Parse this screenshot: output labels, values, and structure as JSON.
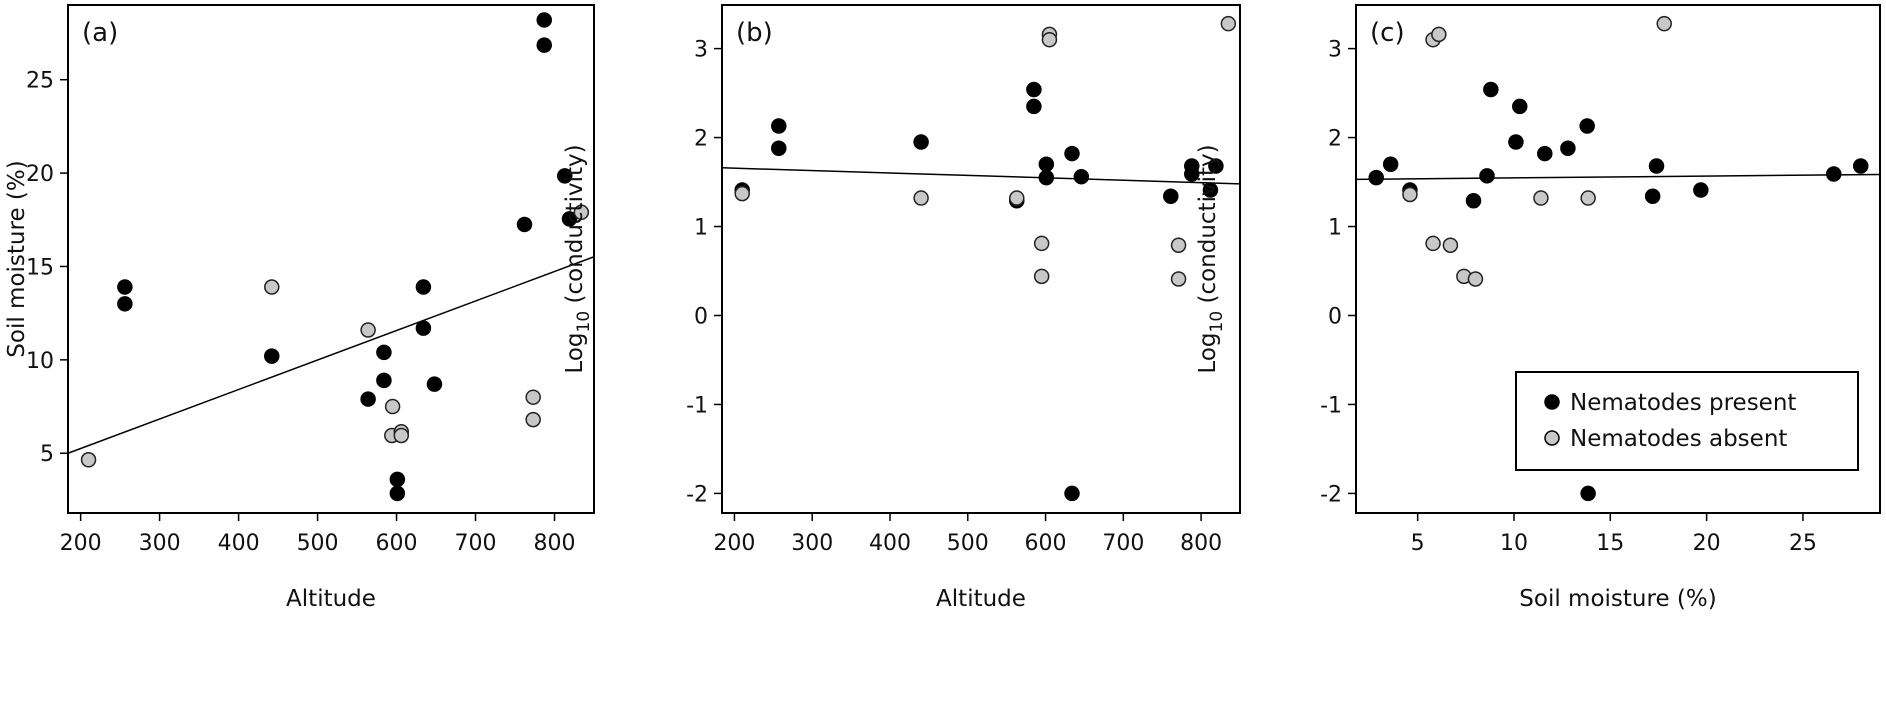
{
  "chart_data": [
    {
      "type": "scatter",
      "panel_label": "(a)",
      "xlabel": "Altitude",
      "ylabel": "Soil moisture (%)",
      "xlim": [
        184,
        850
      ],
      "ylim": [
        1.8,
        29.0
      ],
      "xticks": [
        200,
        300,
        400,
        500,
        600,
        700,
        800
      ],
      "yticks": [
        5,
        10,
        15,
        20,
        25
      ],
      "grid": false,
      "series": [
        {
          "name": "Nematodes present",
          "color": "#000000",
          "points": [
            [
              256,
              13.9
            ],
            [
              256,
              13.0
            ],
            [
              442,
              10.2
            ],
            [
              564,
              7.9
            ],
            [
              584,
              10.4
            ],
            [
              584,
              8.9
            ],
            [
              601,
              3.6
            ],
            [
              601,
              2.85
            ],
            [
              634,
              13.9
            ],
            [
              634,
              11.7
            ],
            [
              648,
              8.7
            ],
            [
              762,
              17.25
            ],
            [
              787,
              28.2
            ],
            [
              787,
              26.85
            ],
            [
              813,
              19.85
            ],
            [
              819,
              17.55
            ]
          ]
        },
        {
          "name": "Nematodes absent",
          "color": "#c8c8c8",
          "points": [
            [
              210,
              4.65
            ],
            [
              442,
              13.9
            ],
            [
              564,
              11.6
            ],
            [
              595,
              7.5
            ],
            [
              594,
              5.95
            ],
            [
              606,
              6.15
            ],
            [
              606,
              5.95
            ],
            [
              773,
              8.0
            ],
            [
              773,
              6.8
            ],
            [
              834,
              17.9
            ]
          ]
        }
      ],
      "fit_line": [
        [
          184,
          5.0
        ],
        [
          850,
          15.52
        ]
      ]
    },
    {
      "type": "scatter",
      "panel_label": "(b)",
      "xlabel": "Altitude",
      "ylabel_main": "Log",
      "ylabel_sub": "10",
      "ylabel_rest": " (conductivity)",
      "xlim": [
        184,
        850
      ],
      "ylim": [
        -2.22,
        3.49
      ],
      "xticks": [
        200,
        300,
        400,
        500,
        600,
        700,
        800
      ],
      "yticks": [
        -2,
        -1,
        0,
        1,
        2,
        3
      ],
      "grid": false,
      "series": [
        {
          "name": "Nematodes present",
          "color": "#000000",
          "points": [
            [
              257,
              2.13
            ],
            [
              257,
              1.88
            ],
            [
              440,
              1.95
            ],
            [
              585,
              2.54
            ],
            [
              585,
              2.35
            ],
            [
              601,
              1.7
            ],
            [
              601,
              1.55
            ],
            [
              634,
              1.82
            ],
            [
              646,
              1.56
            ],
            [
              634,
              -2.0
            ],
            [
              761,
              1.34
            ],
            [
              788,
              1.68
            ],
            [
              788,
              1.59
            ],
            [
              812,
              1.41
            ],
            [
              819,
              1.68
            ],
            [
              210,
              1.41
            ],
            [
              563,
              1.29
            ]
          ]
        },
        {
          "name": "Nematodes absent",
          "color": "#c8c8c8",
          "points": [
            [
              210,
              1.37
            ],
            [
              440,
              1.32
            ],
            [
              563,
              1.32
            ],
            [
              595,
              0.81
            ],
            [
              595,
              0.44
            ],
            [
              605,
              3.16
            ],
            [
              605,
              3.1
            ],
            [
              771,
              0.79
            ],
            [
              771,
              0.41
            ],
            [
              835,
              3.28
            ]
          ]
        }
      ],
      "fit_line": [
        [
          184,
          1.66
        ],
        [
          850,
          1.48
        ]
      ]
    },
    {
      "type": "scatter",
      "panel_label": "(c)",
      "xlabel": "Soil moisture (%)",
      "ylabel_main": "Log",
      "ylabel_sub": "10",
      "ylabel_rest": " (conductivity)",
      "xlim": [
        1.8,
        29.0
      ],
      "ylim": [
        -2.22,
        3.49
      ],
      "xticks": [
        5,
        10,
        15,
        20,
        25
      ],
      "yticks": [
        -2,
        -1,
        0,
        1,
        2,
        3
      ],
      "grid": false,
      "legend": {
        "placement": "center-right",
        "entries": [
          "Nematodes present",
          "Nematodes absent"
        ]
      },
      "series": [
        {
          "name": "Nematodes present",
          "color": "#000000",
          "points": [
            [
              2.85,
              1.55
            ],
            [
              3.6,
              1.7
            ],
            [
              4.6,
              1.41
            ],
            [
              7.9,
              1.29
            ],
            [
              8.6,
              1.57
            ],
            [
              8.8,
              2.54
            ],
            [
              10.1,
              1.95
            ],
            [
              10.3,
              2.35
            ],
            [
              11.6,
              1.82
            ],
            [
              12.8,
              1.88
            ],
            [
              13.8,
              2.13
            ],
            [
              13.85,
              -2.0
            ],
            [
              17.2,
              1.34
            ],
            [
              17.4,
              1.68
            ],
            [
              19.7,
              1.41
            ],
            [
              26.6,
              1.59
            ],
            [
              28.0,
              1.68
            ]
          ]
        },
        {
          "name": "Nematodes absent",
          "color": "#c8c8c8",
          "points": [
            [
              4.6,
              1.36
            ],
            [
              5.8,
              3.1
            ],
            [
              6.1,
              3.16
            ],
            [
              5.8,
              0.81
            ],
            [
              6.7,
              0.79
            ],
            [
              7.4,
              0.44
            ],
            [
              8.0,
              0.41
            ],
            [
              11.4,
              1.32
            ],
            [
              13.85,
              1.32
            ],
            [
              17.8,
              3.28
            ]
          ]
        }
      ],
      "fit_line": [
        [
          1.8,
          1.53
        ],
        [
          29.0,
          1.585
        ]
      ]
    }
  ]
}
